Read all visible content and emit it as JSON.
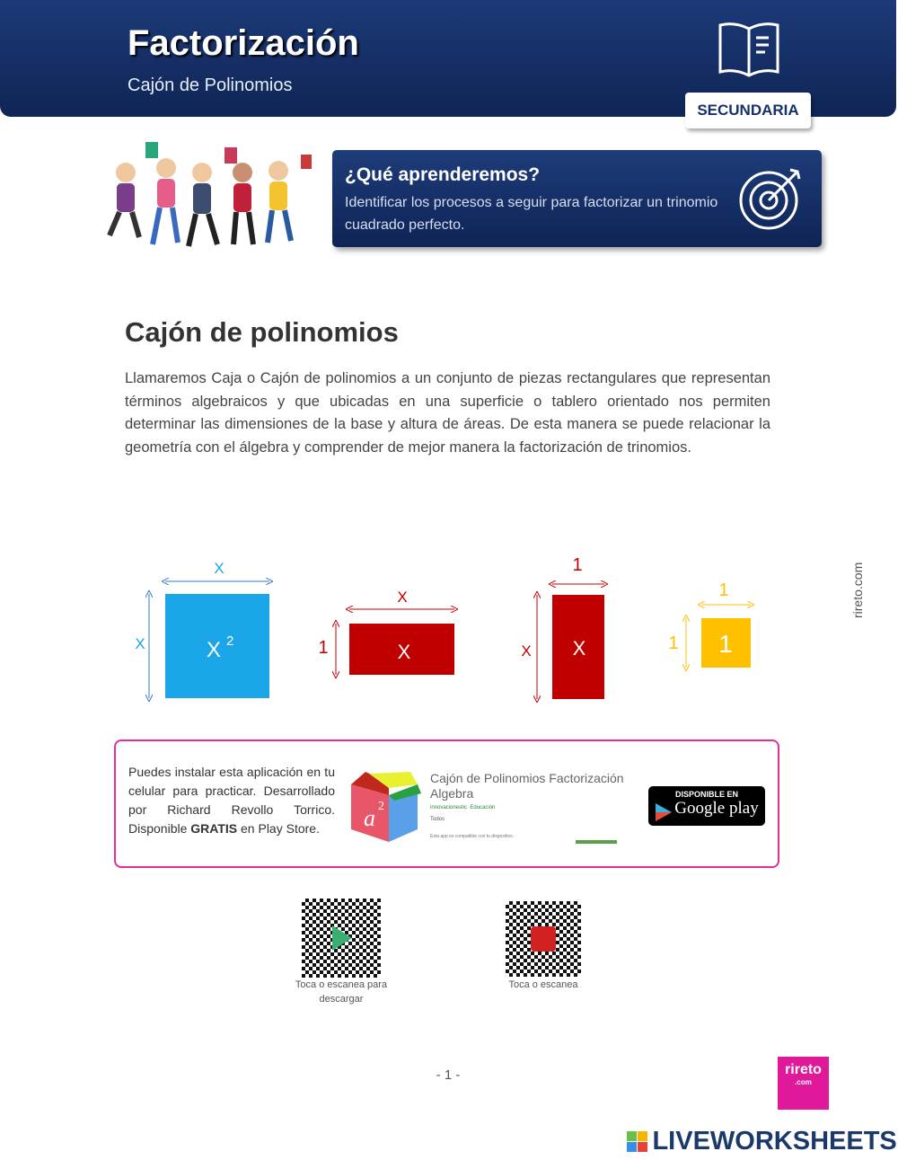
{
  "header": {
    "title": "Factorización",
    "subtitle": "Cajón de Polinomios",
    "level_badge": "SECUNDARIA",
    "icon": "book-icon"
  },
  "objective": {
    "heading": "¿Qué aprenderemos?",
    "text": "Identificar los procesos a seguir para factorizar un trinomio cuadrado perfecto.",
    "icon": "target-icon"
  },
  "section": {
    "heading": "Cajón de polinomios",
    "paragraph": "Llamaremos Caja o Cajón de polinomios a un conjunto de piezas rectangulares que representan términos algebraicos y que ubicadas en una superficie o tablero orientado nos permiten determinar las dimensiones de la base y altura de áreas. De esta manera se puede relacionar la geometría con el álgebra y comprender de mejor manera la factorización de trinomios."
  },
  "tiles": [
    {
      "label": "X",
      "exp": "2",
      "width": "X",
      "height": "X",
      "color": "#1aa6e8"
    },
    {
      "label": "X",
      "width": "X",
      "height": "1",
      "color": "#c00000"
    },
    {
      "label": "X",
      "width": "1",
      "height": "X",
      "color": "#c00000"
    },
    {
      "label": "1",
      "width": "1",
      "height": "1",
      "color": "#ffc000"
    }
  ],
  "app": {
    "description_pre": "Puedes instalar esta aplicación en tu celular para practicar. Desarrollado por Richard Revollo Torrico. Disponible ",
    "description_bold": "GRATIS",
    "description_post": " en Play Store.",
    "name": "Cajón de Polinomios Factorización Algebra",
    "developer": "innovacionestic",
    "category": "Educación",
    "rating_label": "Todos",
    "compat": "Esta app es compatible con tu dispositivo.",
    "icon_text": "a",
    "icon_exp": "2",
    "store_top": "DISPONIBLE EN",
    "store_name": "Google play"
  },
  "qr": [
    {
      "caption": "Toca o escanea para descargar",
      "icon": "play-icon"
    },
    {
      "caption": "Toca o escanea",
      "icon": "youtube-icon"
    }
  ],
  "side_text": "rireto.com",
  "page_number": "- 1 -",
  "logo": {
    "name": "rireto",
    "sub": ".com",
    "color": "#e0189a"
  },
  "watermark": "LIVEWORKSHEETS"
}
